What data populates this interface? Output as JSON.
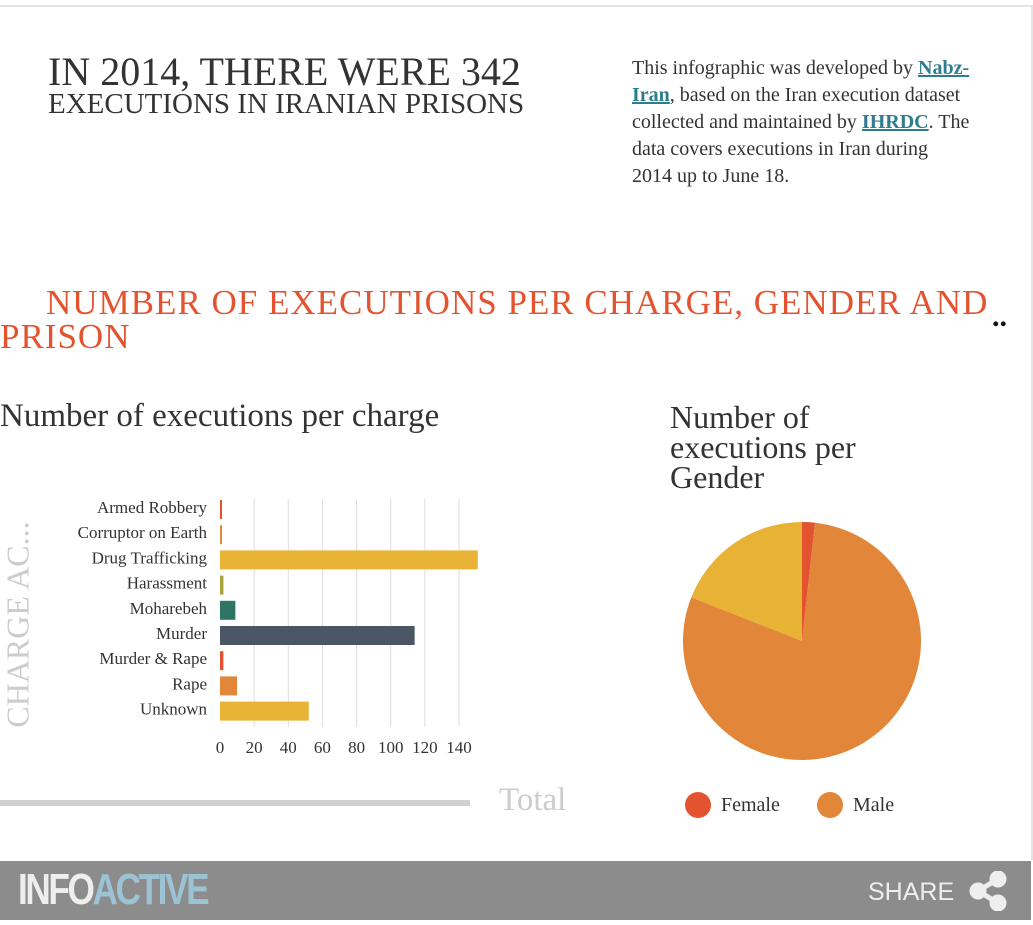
{
  "header": {
    "title_line1": "IN 2014, THERE WERE 342",
    "title_line2": "EXECUTIONS IN IRANIAN PRISONS",
    "intro": {
      "p1": "This infographic was developed by ",
      "link1": "Nabz-Iran",
      "p2": ", based on the Iran execution dataset collected and maintained by ",
      "link2": "IHRDC",
      "p3": ". The data covers executions in Iran during 2014 up to June 18."
    }
  },
  "section_title": "NUMBER OF EXECUTIONS PER CHARGE, GENDER AND PRISON",
  "more": "..",
  "footer": {
    "logo_a": "INFO",
    "logo_b": "ACTIVE",
    "share": "SHARE",
    "colors": {
      "info": "#eeeeee",
      "active": "#9cc3d3"
    }
  },
  "chart_data": [
    {
      "type": "bar",
      "orientation": "horizontal",
      "title": "Number of executions per charge",
      "ylabel": "CHARGE AC...",
      "xlabel": "",
      "categories": [
        "Armed Robbery",
        "Corruptor on Earth",
        "Drug Trafficking",
        "Harassment",
        "Moharebeh",
        "Murder",
        "Murder & Rape",
        "Rape",
        "Unknown"
      ],
      "values": [
        1,
        1,
        151,
        2,
        9,
        114,
        2,
        10,
        52
      ],
      "colors": [
        "#e4532f",
        "#e2873a",
        "#e8b235",
        "#a9a33f",
        "#2e7563",
        "#4a5565",
        "#e4532f",
        "#e2873a",
        "#e8b235"
      ],
      "xticks": [
        "0",
        "20",
        "40",
        "60",
        "80",
        "100",
        "120",
        "140"
      ],
      "xlim": [
        0,
        150
      ],
      "grid": true,
      "slider_label": "Total"
    },
    {
      "type": "pie",
      "title": "Number of executions per Gender",
      "slices": [
        {
          "name": "Female",
          "value": 6,
          "color": "#e4532f"
        },
        {
          "name": "Male",
          "value": 271,
          "color": "#e2873a"
        },
        {
          "name": "",
          "value": 65,
          "color": "#e8b235"
        }
      ],
      "legend": [
        "Female",
        "Male"
      ],
      "legend_position": "bottom"
    }
  ]
}
